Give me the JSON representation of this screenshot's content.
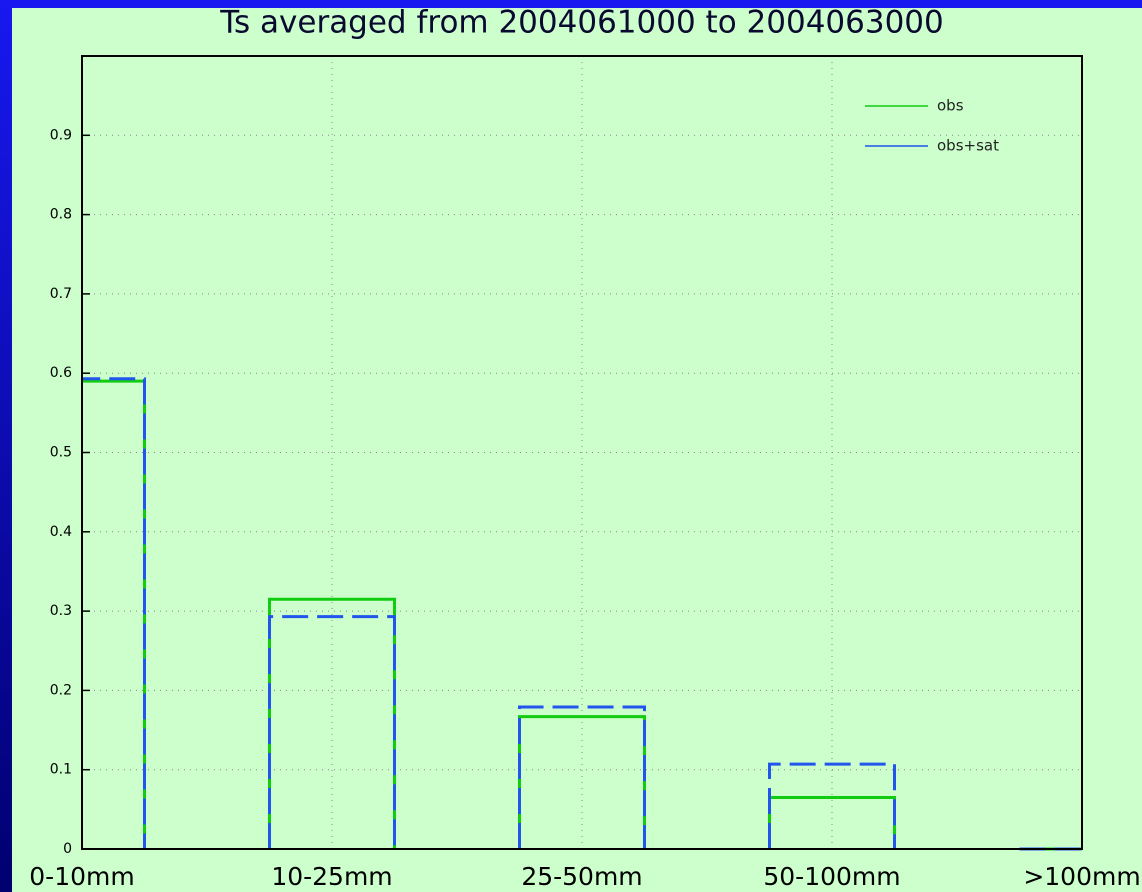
{
  "chart_data": {
    "type": "bar",
    "title": "Ts averaged from 2004061000 to 2004063000",
    "categories": [
      "0-10mm",
      "10-25mm",
      "25-50mm",
      "50-100mm",
      ">100mm"
    ],
    "series": [
      {
        "name": "obs",
        "color": "#11cc11",
        "dash": false,
        "values": [
          0.59,
          0.315,
          0.167,
          0.065,
          0
        ]
      },
      {
        "name": "obs+sat",
        "color": "#2255ee",
        "dash": true,
        "values": [
          0.593,
          0.293,
          0.179,
          0.107,
          0
        ]
      }
    ],
    "ylim": [
      0,
      1.0
    ],
    "yticks": [
      0,
      0.1,
      0.2,
      0.3,
      0.4,
      0.5,
      0.6,
      0.7,
      0.8,
      0.9
    ],
    "grid": true,
    "legend": "upper right"
  }
}
